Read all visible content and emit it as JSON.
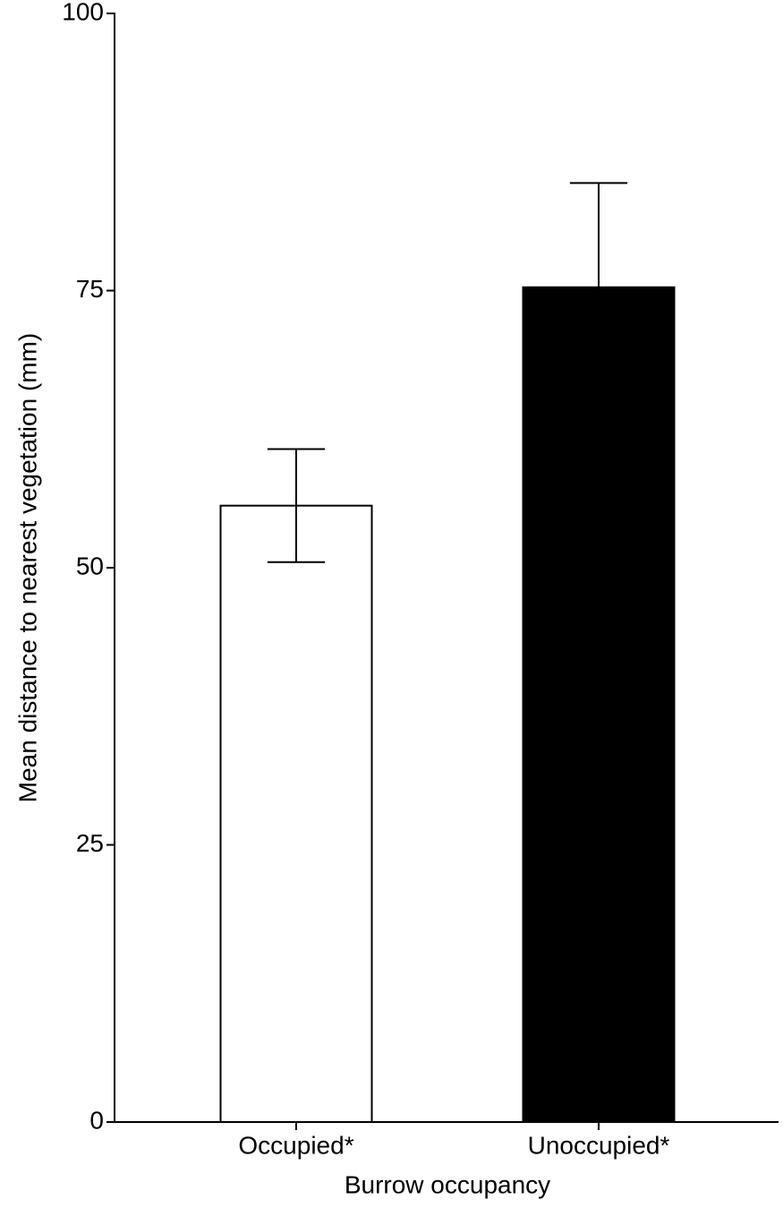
{
  "chart_data": {
    "type": "bar",
    "x_label": "Burrow occupancy",
    "y_label": "Mean distance to nearest vegetation (mm)",
    "categories": [
      "Occupied*",
      "Unoccupied*"
    ],
    "values": [
      55.6,
      75.3
    ],
    "errors": [
      5.1,
      9.4
    ],
    "colors": [
      "#ffffff",
      "#000000"
    ],
    "ylim": [
      0,
      100
    ],
    "yticks": [
      0,
      25,
      50,
      75,
      100
    ],
    "grid": false
  }
}
